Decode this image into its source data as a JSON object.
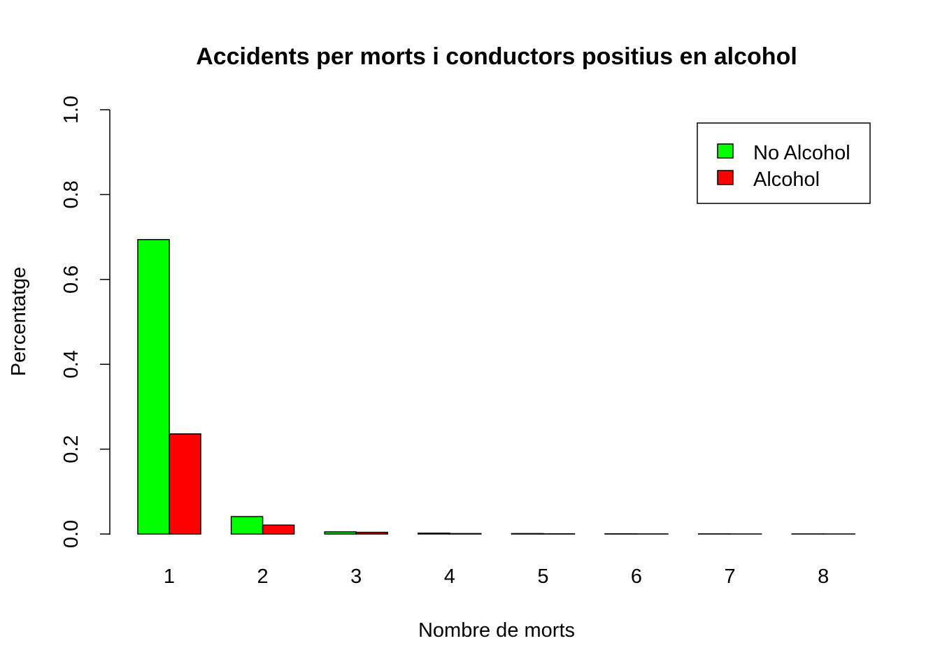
{
  "chart_data": {
    "type": "bar",
    "title": "Accidents per morts i conductors positius en alcohol",
    "xlabel": "Nombre de morts",
    "ylabel": "Percentatge",
    "categories": [
      "1",
      "2",
      "3",
      "4",
      "5",
      "6",
      "7",
      "8"
    ],
    "series": [
      {
        "name": "No Alcohol",
        "color": "#00FF00",
        "values": [
          0.694,
          0.041,
          0.005,
          0.002,
          0.001,
          0.0005,
          0.0003,
          0.0002
        ]
      },
      {
        "name": "Alcohol",
        "color": "#FF0000",
        "values": [
          0.236,
          0.021,
          0.004,
          0.001,
          0.0005,
          0.0002,
          0.0001,
          0.0001
        ]
      }
    ],
    "ylim": [
      0,
      1
    ],
    "yticks": [
      "0.0",
      "0.2",
      "0.4",
      "0.6",
      "0.8",
      "1.0"
    ],
    "ytick_values": [
      0,
      0.2,
      0.4,
      0.6,
      0.8,
      1.0
    ],
    "grid": false,
    "legend_position": "top-right"
  }
}
